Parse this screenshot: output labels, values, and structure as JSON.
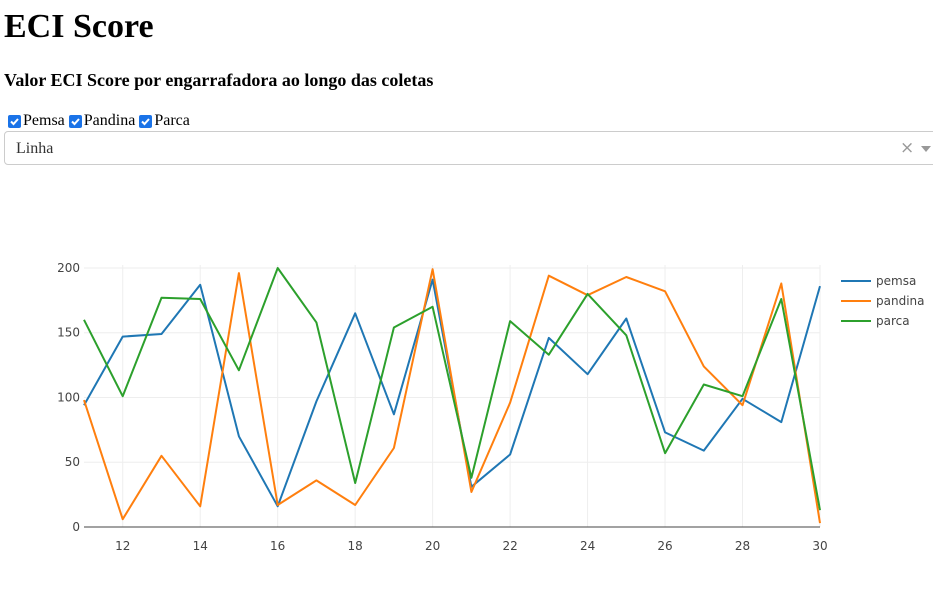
{
  "header": {
    "title": "ECI Score",
    "subtitle": "Valor ECI Score por engarrafadora ao longo das coletas"
  },
  "filters": {
    "checkboxes": [
      {
        "label": "Pemsa",
        "checked": true
      },
      {
        "label": "Pandina",
        "checked": true
      },
      {
        "label": "Parca",
        "checked": true
      }
    ],
    "dropdown": {
      "value": "Linha",
      "clear_glyph": "×"
    }
  },
  "colors": {
    "checkbox": "#1a73e8",
    "pemsa": "#1f77b4",
    "pandina": "#ff7f0e",
    "parca": "#2ca02c"
  },
  "chart_data": {
    "type": "line",
    "title": "",
    "xlabel": "",
    "ylabel": "",
    "x": [
      11,
      12,
      13,
      14,
      15,
      16,
      17,
      18,
      19,
      20,
      21,
      22,
      23,
      24,
      25,
      26,
      27,
      28,
      29,
      30
    ],
    "xlim": [
      11,
      30
    ],
    "ylim": [
      0,
      210
    ],
    "xticks": [
      12,
      14,
      16,
      18,
      20,
      22,
      24,
      26,
      28,
      30
    ],
    "yticks": [
      0,
      50,
      100,
      150,
      200
    ],
    "grid": true,
    "legend_position": "top-right",
    "series": [
      {
        "name": "pemsa",
        "color": "#1f77b4",
        "values": [
          94,
          147,
          149,
          187,
          70,
          16,
          97,
          165,
          87,
          191,
          31,
          56,
          146,
          118,
          161,
          73,
          59,
          99,
          81,
          186
        ]
      },
      {
        "name": "pandina",
        "color": "#ff7f0e",
        "values": [
          98,
          6,
          55,
          16,
          196,
          17,
          36,
          17,
          61,
          199,
          27,
          96,
          194,
          179,
          193,
          182,
          124,
          94,
          188,
          3
        ]
      },
      {
        "name": "parca",
        "color": "#2ca02c",
        "values": [
          160,
          101,
          177,
          176,
          121,
          200,
          158,
          34,
          154,
          170,
          38,
          159,
          133,
          180,
          148,
          57,
          110,
          101,
          176,
          13
        ]
      }
    ]
  }
}
